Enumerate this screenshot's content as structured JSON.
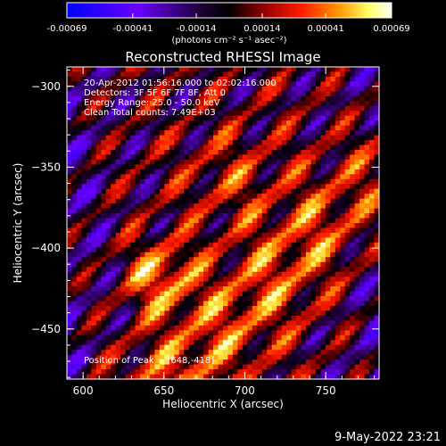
{
  "chart_data": {
    "type": "heatmap",
    "title": "Reconstructed RHESSI Image",
    "xlabel": "Heliocentric X (arcsec)",
    "ylabel": "Heliocentric Y (arcsec)",
    "xlim": [
      590,
      783
    ],
    "ylim": [
      -481,
      -288
    ],
    "x_ticks": [
      600,
      650,
      700,
      750
    ],
    "y_ticks": [
      -300,
      -350,
      -400,
      -450
    ],
    "x_tick_labels": [
      "600",
      "650",
      "700",
      "750"
    ],
    "y_tick_labels": [
      "−300",
      "−350",
      "−400",
      "−450"
    ],
    "annotations": [
      "20-Apr-2012 01:56:16.000 to 02:02:16.000",
      "Detectors: 3F 5F 6F 7F 8F, Att 0",
      "Energy Range: 25.0 - 50.0 keV",
      "Clean    Total counts: 7.49E+03"
    ],
    "peak_label": "Position of Peak = [648,-418]",
    "peak": [
      648,
      -418
    ],
    "colorbar": {
      "range": [
        -0.00069,
        0.00069
      ],
      "tick_values": [
        -0.00069,
        -0.00041,
        -0.00014,
        0.00014,
        0.00041,
        0.00069
      ],
      "tick_labels": [
        "-0.00069",
        "-0.00041",
        "-0.00014",
        "0.00014",
        "0.00041",
        "0.00069"
      ],
      "unit_label": "(photons cm⁻² s⁻¹ asec⁻²)",
      "colors": [
        "#0000ff",
        "#7a00ff",
        "#000000",
        "#8b0000",
        "#ff0000",
        "#ff8c00",
        "#ffff66",
        "#ffffff"
      ]
    }
  },
  "footer": {
    "timestamp": "9-May-2022 23:21"
  }
}
